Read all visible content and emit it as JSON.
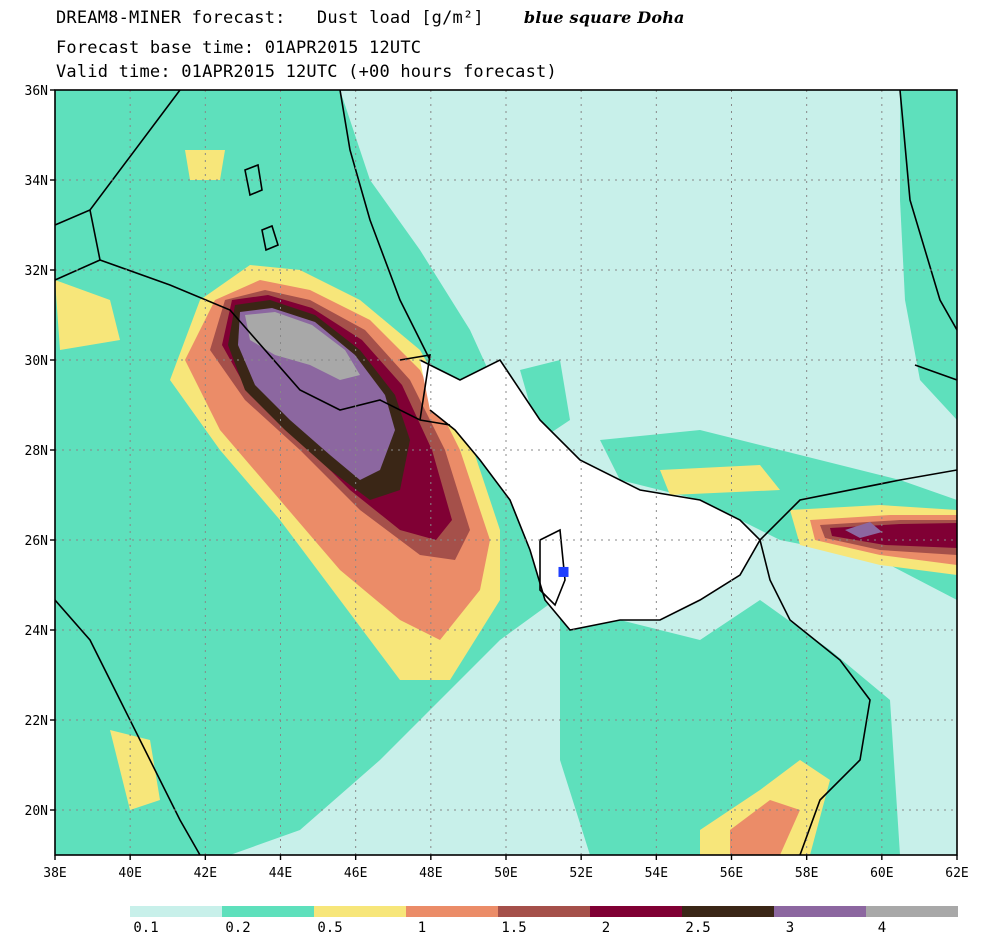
{
  "header": {
    "line1_model": "DREAM8-MINER forecast:",
    "line1_variable": "Dust load [g/m²]",
    "line1_note": "blue square Doha",
    "line2": "Forecast base time: 01APR2015 12UTC",
    "line3": "Valid time: 01APR2015 12UTC (+00 hours forecast)"
  },
  "map": {
    "lon_range": [
      38,
      62
    ],
    "lat_range": [
      19,
      36
    ],
    "lat_ticks": [
      "36N",
      "34N",
      "32N",
      "30N",
      "28N",
      "26N",
      "24N",
      "22N",
      "20N"
    ],
    "lon_ticks": [
      "38E",
      "40E",
      "42E",
      "44E",
      "46E",
      "48E",
      "50E",
      "52E",
      "54E",
      "56E",
      "58E",
      "60E",
      "62E"
    ],
    "marker": {
      "name": "Doha",
      "lon": 51.53,
      "lat": 25.29,
      "color": "#1f3fff",
      "shape": "square"
    }
  },
  "colorbar": {
    "levels": [
      "0.1",
      "0.2",
      "0.5",
      "1",
      "1.5",
      "2",
      "2.5",
      "3",
      "4"
    ],
    "colors": [
      "#c8f0ea",
      "#5ee0bc",
      "#f7e67a",
      "#eb8c68",
      "#a5504a",
      "#800034",
      "#3a2616",
      "#8c67a0",
      "#a8a8a8"
    ]
  }
}
